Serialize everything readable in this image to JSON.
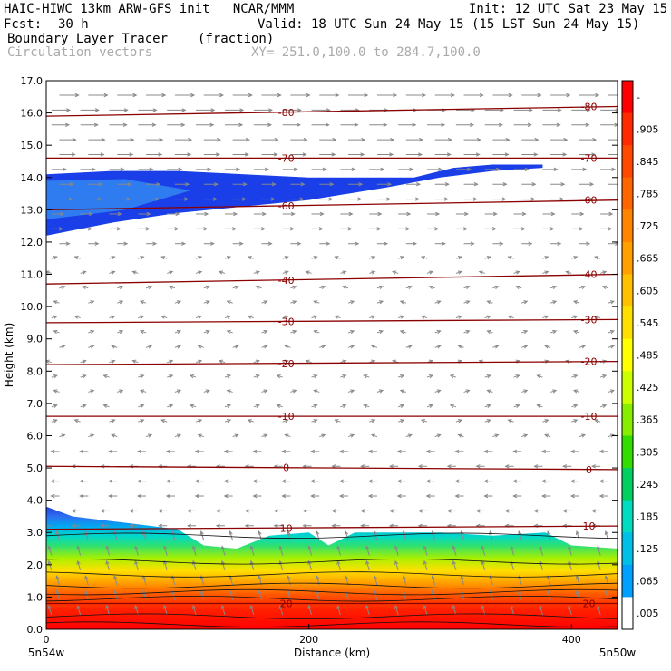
{
  "header": {
    "title_line": "HAIC-HIWC 13km ARW-GFS init   NCAR/MMM",
    "init": "Init: 12 UTC Sat 23 May 15",
    "fcst_label": "Fcst:",
    "fcst_value": "30 h",
    "valid": "Valid: 18 UTC Sun 24 May 15 (15 LST Sun 24 May 15)",
    "field_name": "Boundary Layer Tracer",
    "field_units": "(fraction)",
    "vectors_label": "Circulation vectors",
    "xy_label": "XY= 251.0,100.0 to 284.7,100.0"
  },
  "chart_data": {
    "type": "heatmap",
    "title": "Boundary Layer Tracer",
    "xlabel": "Distance (km)",
    "ylabel": "Height (km)",
    "xlim": [
      0,
      435
    ],
    "ylim": [
      0,
      17
    ],
    "x_ticks": [
      "0",
      "200",
      "400"
    ],
    "x_tick_values": [
      0,
      200,
      400
    ],
    "y_ticks": [
      "0.0",
      "1.0",
      "2.0",
      "3.0",
      "4.0",
      "5.0",
      "6.0",
      "7.0",
      "8.0",
      "9.0",
      "10.0",
      "11.0",
      "12.0",
      "13.0",
      "14.0",
      "15.0",
      "16.0",
      "17.0"
    ],
    "x_endpoint_labels": [
      "5n54w",
      "5n50w"
    ],
    "colorbar_labels": [
      "-",
      ".905",
      ".845",
      ".785",
      ".725",
      ".665",
      ".605",
      ".545",
      ".485",
      ".425",
      ".365",
      ".305",
      ".245",
      ".185",
      ".125",
      ".065",
      ".005"
    ],
    "colorbar_colors": [
      "#ff0000",
      "#ff2a00",
      "#ff4800",
      "#ff6600",
      "#ff8400",
      "#ffa000",
      "#ffc000",
      "#ffdf00",
      "#ffff00",
      "#ccff00",
      "#88ee00",
      "#33dd00",
      "#00d060",
      "#00dcc0",
      "#00c0e8",
      "#00a0ff",
      "#ffffff"
    ],
    "upper_layer_top": [
      [
        0,
        14.1
      ],
      [
        50,
        14.2
      ],
      [
        100,
        14.2
      ],
      [
        200,
        14.0
      ],
      [
        280,
        14.0
      ],
      [
        310,
        14.3
      ],
      [
        340,
        14.4
      ],
      [
        378,
        14.4
      ]
    ],
    "upper_layer_bottom": [
      [
        0,
        12.2
      ],
      [
        50,
        12.6
      ],
      [
        100,
        12.9
      ],
      [
        150,
        13.1
      ],
      [
        200,
        13.3
      ],
      [
        260,
        13.7
      ],
      [
        300,
        14.0
      ],
      [
        340,
        14.2
      ],
      [
        378,
        14.3
      ]
    ],
    "lower_layer_top": [
      [
        0,
        3.8
      ],
      [
        20,
        3.5
      ],
      [
        60,
        3.3
      ],
      [
        100,
        3.1
      ],
      [
        120,
        2.6
      ],
      [
        145,
        2.5
      ],
      [
        170,
        2.9
      ],
      [
        200,
        3.0
      ],
      [
        215,
        2.6
      ],
      [
        235,
        3.0
      ],
      [
        300,
        3.0
      ],
      [
        340,
        2.9
      ],
      [
        380,
        3.0
      ],
      [
        400,
        2.6
      ],
      [
        435,
        2.5
      ]
    ],
    "isotherms": [
      {
        "value": "-80",
        "y_start": 15.9,
        "y_end": 16.2
      },
      {
        "value": "-70",
        "y_start": 14.6,
        "y_end": 14.6
      },
      {
        "value": "-60",
        "y_start": 13.0,
        "y_end": 13.3
      },
      {
        "value": "-40",
        "y_start": 10.7,
        "y_end": 11.0
      },
      {
        "value": "-30",
        "y_start": 9.5,
        "y_end": 9.6
      },
      {
        "value": "-20",
        "y_start": 8.2,
        "y_end": 8.3
      },
      {
        "value": "-10",
        "y_start": 6.6,
        "y_end": 6.6
      },
      {
        "value": "0",
        "y_start": 5.05,
        "y_end": 4.95
      },
      {
        "value": "10",
        "y_start": 3.1,
        "y_end": 3.2
      },
      {
        "value": "20",
        "y_start": 0.8,
        "y_end": 0.8
      }
    ],
    "theta_contours": [
      2.9,
      2.1,
      1.7,
      1.35,
      1.15,
      0.95,
      0.4,
      0.15
    ]
  }
}
